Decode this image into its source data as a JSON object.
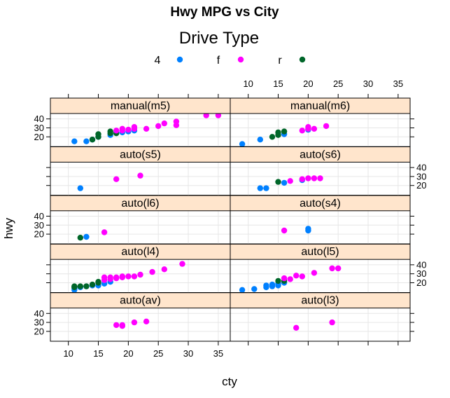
{
  "chart_data": {
    "type": "scatter",
    "title": "Hwy MPG vs City",
    "xlabel": "cty",
    "ylabel": "hwy",
    "xlim": [
      7,
      37
    ],
    "ylim": [
      9,
      46
    ],
    "x_ticks": [
      10,
      15,
      20,
      25,
      30,
      35
    ],
    "y_ticks": [
      20,
      30,
      40
    ],
    "x_tick_labels": [
      "10",
      "15",
      "20",
      "25",
      "30",
      "35"
    ],
    "y_tick_labels": [
      "20",
      "30",
      "40"
    ],
    "grid": true,
    "legend": {
      "title": "Drive Type",
      "position": "top",
      "entries": [
        {
          "label": "4",
          "color": "#0080ff"
        },
        {
          "label": "f",
          "color": "#ff00ff"
        },
        {
          "label": "r",
          "color": "#006629"
        }
      ]
    },
    "panels": [
      {
        "name": "auto(av)",
        "row": 0,
        "col": 0,
        "points": [
          {
            "d": "f",
            "x": 18,
            "y": 27
          },
          {
            "d": "f",
            "x": 19,
            "y": 26
          },
          {
            "d": "f",
            "x": 19,
            "y": 27
          },
          {
            "d": "f",
            "x": 21,
            "y": 30
          },
          {
            "d": "f",
            "x": 23,
            "y": 31
          }
        ]
      },
      {
        "name": "auto(l3)",
        "row": 0,
        "col": 1,
        "points": [
          {
            "d": "f",
            "x": 18,
            "y": 24
          },
          {
            "d": "f",
            "x": 24,
            "y": 30
          }
        ]
      },
      {
        "name": "auto(l4)",
        "row": 1,
        "col": 0,
        "points": [
          {
            "d": "4",
            "x": 11,
            "y": 12
          },
          {
            "d": "4",
            "x": 11,
            "y": 14
          },
          {
            "d": "4",
            "x": 12,
            "y": 15
          },
          {
            "d": "4",
            "x": 13,
            "y": 16
          },
          {
            "d": "4",
            "x": 14,
            "y": 17
          },
          {
            "d": "4",
            "x": 15,
            "y": 17
          },
          {
            "d": "4",
            "x": 16,
            "y": 19
          },
          {
            "d": "4",
            "x": 17,
            "y": 21
          },
          {
            "d": "r",
            "x": 11,
            "y": 15
          },
          {
            "d": "r",
            "x": 11,
            "y": 16
          },
          {
            "d": "r",
            "x": 12,
            "y": 16
          },
          {
            "d": "r",
            "x": 13,
            "y": 16
          },
          {
            "d": "r",
            "x": 14,
            "y": 18
          },
          {
            "d": "r",
            "x": 15,
            "y": 20
          },
          {
            "d": "r",
            "x": 15,
            "y": 21
          },
          {
            "d": "f",
            "x": 16,
            "y": 23
          },
          {
            "d": "f",
            "x": 16,
            "y": 26
          },
          {
            "d": "f",
            "x": 17,
            "y": 24
          },
          {
            "d": "f",
            "x": 17,
            "y": 26
          },
          {
            "d": "f",
            "x": 18,
            "y": 25
          },
          {
            "d": "f",
            "x": 18,
            "y": 26
          },
          {
            "d": "f",
            "x": 19,
            "y": 26
          },
          {
            "d": "f",
            "x": 19,
            "y": 27
          },
          {
            "d": "f",
            "x": 20,
            "y": 27
          },
          {
            "d": "f",
            "x": 21,
            "y": 27
          },
          {
            "d": "f",
            "x": 22,
            "y": 29
          },
          {
            "d": "f",
            "x": 24,
            "y": 32
          },
          {
            "d": "f",
            "x": 26,
            "y": 35
          },
          {
            "d": "f",
            "x": 29,
            "y": 41
          }
        ]
      },
      {
        "name": "auto(l5)",
        "row": 1,
        "col": 1,
        "points": [
          {
            "d": "4",
            "x": 9,
            "y": 12
          },
          {
            "d": "4",
            "x": 11,
            "y": 13
          },
          {
            "d": "4",
            "x": 13,
            "y": 15
          },
          {
            "d": "4",
            "x": 13,
            "y": 17
          },
          {
            "d": "4",
            "x": 14,
            "y": 16
          },
          {
            "d": "4",
            "x": 14,
            "y": 18
          },
          {
            "d": "4",
            "x": 15,
            "y": 17
          },
          {
            "d": "4",
            "x": 15,
            "y": 19
          },
          {
            "d": "4",
            "x": 16,
            "y": 20
          },
          {
            "d": "r",
            "x": 15,
            "y": 22
          },
          {
            "d": "r",
            "x": 16,
            "y": 22
          },
          {
            "d": "f",
            "x": 16,
            "y": 25
          },
          {
            "d": "f",
            "x": 17,
            "y": 24
          },
          {
            "d": "f",
            "x": 18,
            "y": 28
          },
          {
            "d": "f",
            "x": 19,
            "y": 27
          },
          {
            "d": "f",
            "x": 21,
            "y": 31
          },
          {
            "d": "f",
            "x": 24,
            "y": 36
          },
          {
            "d": "f",
            "x": 25,
            "y": 36
          }
        ]
      },
      {
        "name": "auto(l6)",
        "row": 2,
        "col": 0,
        "points": [
          {
            "d": "4",
            "x": 13,
            "y": 17
          },
          {
            "d": "r",
            "x": 12,
            "y": 16
          },
          {
            "d": "f",
            "x": 16,
            "y": 22
          }
        ]
      },
      {
        "name": "auto(s4)",
        "row": 2,
        "col": 1,
        "points": [
          {
            "d": "f",
            "x": 16,
            "y": 24
          },
          {
            "d": "4",
            "x": 20,
            "y": 24
          },
          {
            "d": "4",
            "x": 20,
            "y": 26
          }
        ]
      },
      {
        "name": "auto(s5)",
        "row": 3,
        "col": 0,
        "points": [
          {
            "d": "4",
            "x": 12,
            "y": 17
          },
          {
            "d": "f",
            "x": 18,
            "y": 27
          },
          {
            "d": "f",
            "x": 22,
            "y": 31
          }
        ]
      },
      {
        "name": "auto(s6)",
        "row": 3,
        "col": 1,
        "points": [
          {
            "d": "4",
            "x": 12,
            "y": 17
          },
          {
            "d": "4",
            "x": 13,
            "y": 17
          },
          {
            "d": "4",
            "x": 16,
            "y": 23
          },
          {
            "d": "4",
            "x": 19,
            "y": 26
          },
          {
            "d": "r",
            "x": 15,
            "y": 24
          },
          {
            "d": "f",
            "x": 17,
            "y": 25
          },
          {
            "d": "f",
            "x": 19,
            "y": 27
          },
          {
            "d": "f",
            "x": 20,
            "y": 28
          },
          {
            "d": "f",
            "x": 21,
            "y": 28
          },
          {
            "d": "f",
            "x": 22,
            "y": 28
          }
        ]
      },
      {
        "name": "manual(m5)",
        "row": 4,
        "col": 0,
        "points": [
          {
            "d": "4",
            "x": 11,
            "y": 15
          },
          {
            "d": "4",
            "x": 13,
            "y": 15
          },
          {
            "d": "4",
            "x": 14,
            "y": 17
          },
          {
            "d": "4",
            "x": 15,
            "y": 20
          },
          {
            "d": "4",
            "x": 17,
            "y": 22
          },
          {
            "d": "4",
            "x": 18,
            "y": 25
          },
          {
            "d": "4",
            "x": 19,
            "y": 25
          },
          {
            "d": "4",
            "x": 20,
            "y": 26
          },
          {
            "d": "4",
            "x": 21,
            "y": 27
          },
          {
            "d": "r",
            "x": 14,
            "y": 17
          },
          {
            "d": "r",
            "x": 15,
            "y": 20
          },
          {
            "d": "r",
            "x": 15,
            "y": 23
          },
          {
            "d": "r",
            "x": 17,
            "y": 24
          },
          {
            "d": "r",
            "x": 17,
            "y": 26
          },
          {
            "d": "r",
            "x": 18,
            "y": 24
          },
          {
            "d": "f",
            "x": 18,
            "y": 27
          },
          {
            "d": "f",
            "x": 19,
            "y": 27
          },
          {
            "d": "f",
            "x": 19,
            "y": 29
          },
          {
            "d": "f",
            "x": 20,
            "y": 28
          },
          {
            "d": "f",
            "x": 21,
            "y": 29
          },
          {
            "d": "f",
            "x": 21,
            "y": 31
          },
          {
            "d": "f",
            "x": 23,
            "y": 29
          },
          {
            "d": "f",
            "x": 25,
            "y": 32
          },
          {
            "d": "f",
            "x": 26,
            "y": 35
          },
          {
            "d": "f",
            "x": 28,
            "y": 33
          },
          {
            "d": "f",
            "x": 28,
            "y": 37
          },
          {
            "d": "f",
            "x": 33,
            "y": 44
          },
          {
            "d": "f",
            "x": 35,
            "y": 44
          }
        ]
      },
      {
        "name": "manual(m6)",
        "row": 4,
        "col": 1,
        "points": [
          {
            "d": "4",
            "x": 9,
            "y": 12
          },
          {
            "d": "4",
            "x": 12,
            "y": 17
          },
          {
            "d": "4",
            "x": 16,
            "y": 23
          },
          {
            "d": "4",
            "x": 20,
            "y": 28
          },
          {
            "d": "r",
            "x": 14,
            "y": 20
          },
          {
            "d": "r",
            "x": 15,
            "y": 22
          },
          {
            "d": "r",
            "x": 15,
            "y": 25
          },
          {
            "d": "r",
            "x": 16,
            "y": 26
          },
          {
            "d": "f",
            "x": 19,
            "y": 27
          },
          {
            "d": "f",
            "x": 20,
            "y": 29
          },
          {
            "d": "f",
            "x": 20,
            "y": 31
          },
          {
            "d": "f",
            "x": 21,
            "y": 29
          },
          {
            "d": "f",
            "x": 23,
            "y": 32
          }
        ]
      }
    ]
  }
}
